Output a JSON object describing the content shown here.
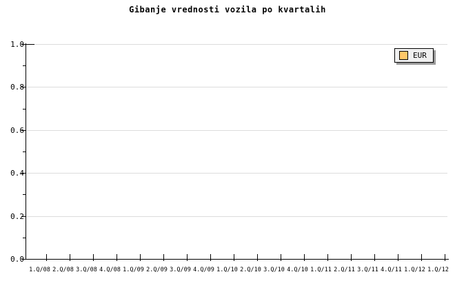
{
  "chart_data": {
    "type": "line",
    "title": "Gibanje vrednosti vozila po kvartalih",
    "categories": [
      "1.Q/08",
      "2.Q/08",
      "3.Q/08",
      "4.Q/08",
      "1.Q/09",
      "2.Q/09",
      "3.Q/09",
      "4.Q/09",
      "1.Q/10",
      "2.Q/10",
      "3.Q/10",
      "4.Q/10",
      "1.Q/11",
      "2.Q/11",
      "3.Q/11",
      "4.Q/11",
      "1.Q/12",
      "1.Q/12"
    ],
    "series": [
      {
        "name": "EUR",
        "color": "#FFC869",
        "values": []
      }
    ],
    "xlabel": "",
    "ylabel": "",
    "y_axis": {
      "min": 0.0,
      "max": 1.0,
      "major_step": 0.2,
      "minor_step": 0.1,
      "tick_labels": [
        "0.0",
        "0.2",
        "0.4",
        "0.6",
        "0.8",
        "1.0"
      ]
    },
    "grid": "horizontal-major",
    "legend": {
      "position": "top-right",
      "entries": [
        {
          "label": "EUR",
          "swatch_color": "#FFC869"
        }
      ]
    },
    "colors": {
      "background": "#FFFFFF",
      "axis": "#000000",
      "grid": "#DCDCDC",
      "text": "#000000",
      "legend_bg": "#F0F0F0",
      "legend_border": "#000000",
      "legend_shadow": "#999999"
    }
  }
}
